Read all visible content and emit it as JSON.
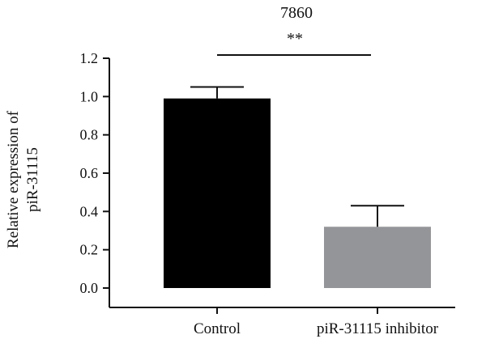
{
  "chart_data": {
    "type": "bar",
    "title": "7860",
    "ylabel_lines": [
      "Relative expression of",
      "piR-31115"
    ],
    "ylim": [
      0,
      1.2
    ],
    "y_ticks": [
      "0.0",
      "0.2",
      "0.4",
      "0.6",
      "0.8",
      "1.0",
      "1.2"
    ],
    "categories": [
      "Control",
      "piR-31115 inhibitor"
    ],
    "values": [
      0.99,
      0.32
    ],
    "errors": [
      0.06,
      0.11
    ],
    "colors": [
      "#000000",
      "#939598"
    ],
    "significance": {
      "label": "**",
      "between": [
        "Control",
        "piR-31115 inhibitor"
      ]
    },
    "grid": false
  }
}
